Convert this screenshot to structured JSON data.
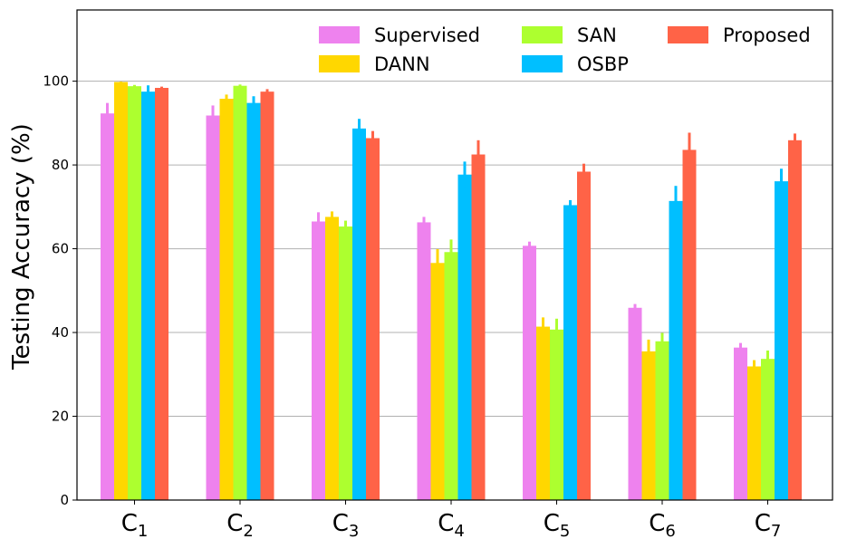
{
  "chart_data": {
    "type": "bar",
    "title": "",
    "xlabel": "",
    "ylabel": "Testing Accuracy (%)",
    "ylim": [
      0,
      117
    ],
    "yticks": [
      0,
      20,
      40,
      60,
      80,
      100
    ],
    "grid": "horizontal",
    "legend_position": "top-right",
    "categories": [
      {
        "base": "C",
        "sub": "1"
      },
      {
        "base": "C",
        "sub": "2"
      },
      {
        "base": "C",
        "sub": "3"
      },
      {
        "base": "C",
        "sub": "4"
      },
      {
        "base": "C",
        "sub": "5"
      },
      {
        "base": "C",
        "sub": "6"
      },
      {
        "base": "C",
        "sub": "7"
      }
    ],
    "series": [
      {
        "name": "Supervised",
        "color": "#EE82EE",
        "values": [
          92.3,
          91.8,
          66.5,
          66.3,
          60.7,
          45.9,
          36.4
        ],
        "errors": [
          2.5,
          2.4,
          2.2,
          1.3,
          1.0,
          0.9,
          1.1
        ]
      },
      {
        "name": "DANN",
        "color": "#FFD700",
        "values": [
          99.8,
          95.8,
          67.6,
          56.6,
          41.4,
          35.5,
          31.9
        ],
        "errors": [
          0.1,
          1.0,
          1.3,
          3.3,
          2.2,
          2.8,
          1.5
        ]
      },
      {
        "name": "SAN",
        "color": "#ADFF2F",
        "values": [
          98.8,
          98.9,
          65.3,
          59.2,
          40.7,
          37.9,
          33.7
        ],
        "errors": [
          0.3,
          0.3,
          1.4,
          3.0,
          2.6,
          2.0,
          2.0
        ]
      },
      {
        "name": "OSBP",
        "color": "#00BFFF",
        "values": [
          97.5,
          94.8,
          88.7,
          77.7,
          70.4,
          71.4,
          76.1
        ],
        "errors": [
          1.5,
          1.6,
          2.3,
          3.1,
          1.2,
          3.6,
          3.0
        ]
      },
      {
        "name": "Proposed",
        "color": "#FF6347",
        "values": [
          98.4,
          97.5,
          86.4,
          82.5,
          78.4,
          83.6,
          85.9
        ],
        "errors": [
          0.3,
          0.6,
          1.7,
          3.4,
          1.9,
          4.1,
          1.6
        ]
      }
    ]
  }
}
